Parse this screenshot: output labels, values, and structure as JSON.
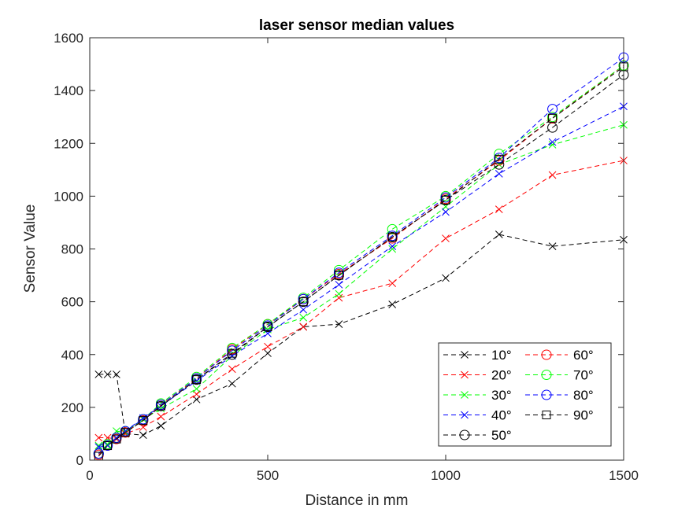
{
  "chart_data": {
    "type": "line",
    "title": "laser sensor median values",
    "xlabel": "Distance in mm",
    "ylabel": "Sensor Value",
    "xlim": [
      0,
      1500
    ],
    "ylim": [
      0,
      1600
    ],
    "xticks": [
      0,
      500,
      1000,
      1500
    ],
    "yticks": [
      0,
      200,
      400,
      600,
      800,
      1000,
      1200,
      1400,
      1600
    ],
    "grid": false,
    "legend_position": "bottom-right",
    "x": [
      25,
      50,
      75,
      100,
      150,
      200,
      300,
      400,
      500,
      600,
      700,
      850,
      1000,
      1150,
      1300,
      1500
    ],
    "series": [
      {
        "name": "10°",
        "color": "#000000",
        "marker": "x",
        "values": [
          325,
          325,
          325,
          100,
          95,
          130,
          230,
          290,
          405,
          505,
          515,
          590,
          690,
          855,
          810,
          835
        ]
      },
      {
        "name": "20°",
        "color": "#ff0000",
        "marker": "x",
        "values": [
          85,
          85,
          80,
          100,
          125,
          165,
          250,
          345,
          430,
          505,
          615,
          670,
          840,
          950,
          1080,
          1135
        ]
      },
      {
        "name": "30°",
        "color": "#00ff00",
        "marker": "x",
        "values": [
          55,
          60,
          110,
          105,
          155,
          195,
          270,
          395,
          495,
          540,
          630,
          800,
          960,
          1120,
          1195,
          1270
        ]
      },
      {
        "name": "40°",
        "color": "#0000ff",
        "marker": "x",
        "values": [
          50,
          55,
          85,
          110,
          160,
          205,
          300,
          395,
          480,
          570,
          665,
          810,
          940,
          1085,
          1205,
          1340
        ]
      },
      {
        "name": "50°",
        "color": "#000000",
        "marker": "o",
        "values": [
          25,
          60,
          85,
          105,
          150,
          205,
          305,
          400,
          505,
          600,
          700,
          845,
          985,
          1120,
          1260,
          1460
        ]
      },
      {
        "name": "60°",
        "color": "#ff0000",
        "marker": "o",
        "values": [
          20,
          55,
          80,
          105,
          150,
          210,
          310,
          420,
          515,
          610,
          705,
          840,
          990,
          1135,
          1295,
          1495
        ]
      },
      {
        "name": "70°",
        "color": "#00ff00",
        "marker": "o",
        "values": [
          25,
          60,
          85,
          110,
          155,
          215,
          315,
          425,
          515,
          615,
          720,
          875,
          1000,
          1160,
          1300,
          1495
        ]
      },
      {
        "name": "80°",
        "color": "#0000ff",
        "marker": "o",
        "values": [
          25,
          55,
          85,
          110,
          155,
          210,
          310,
          415,
          510,
          610,
          710,
          850,
          995,
          1145,
          1330,
          1525
        ]
      },
      {
        "name": "90°",
        "color": "#000000",
        "marker": "s",
        "values": [
          15,
          55,
          80,
          105,
          150,
          205,
          305,
          405,
          505,
          600,
          700,
          845,
          985,
          1140,
          1295,
          1490
        ]
      }
    ]
  }
}
